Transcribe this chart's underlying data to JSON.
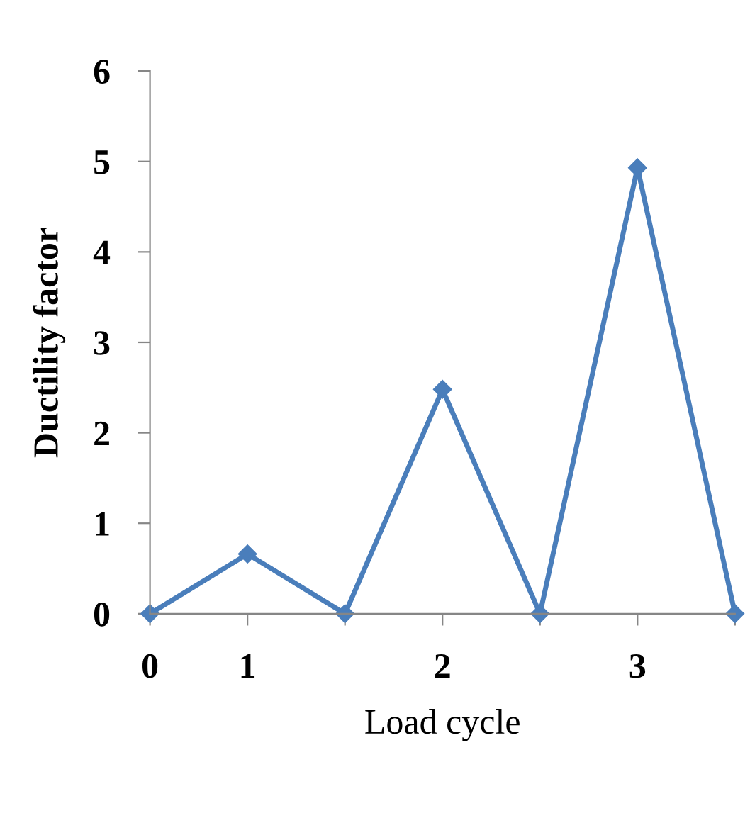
{
  "chart_data": {
    "type": "line",
    "xlabel": "Load cycle",
    "ylabel": "Ductility factor",
    "categories": [
      "0",
      "1",
      null,
      "2",
      null,
      "3",
      null
    ],
    "series": [
      {
        "color": "#4a7ebb",
        "values": [
          0,
          0.66,
          0,
          2.48,
          0,
          4.93,
          0
        ]
      }
    ],
    "ylim": [
      0,
      6
    ],
    "yticks": [
      0,
      1,
      2,
      3,
      4,
      5,
      6
    ],
    "marker": "diamond",
    "line_style": "solid",
    "grid": false,
    "legend": false
  }
}
